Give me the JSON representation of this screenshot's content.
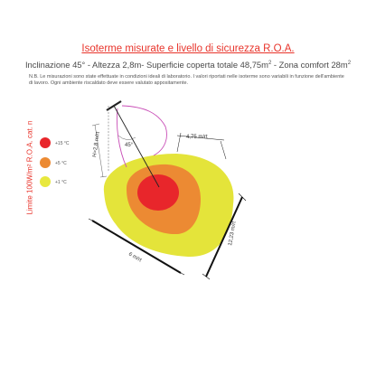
{
  "title": "Isoterme misurate e livello di sicurezza R.O.A.",
  "subtitle": {
    "part1": "Inclinazione 45° - Altezza 2,8m- Superficie coperta totale 48,75m",
    "sup1": "2",
    "part2": " - Zona comfort 28m",
    "sup2": "2"
  },
  "note": "N.B. Le misurazioni sono state effettuate in condizioni ideali di laboratorio. I valori riportati nelle isoterme sono variabili in funzione dell'ambiente di lavoro. Ogni ambiente riscaldato deve essere valutato appositamente.",
  "side_label": "Limite 100W/m² R.O.A. cat. n",
  "legend": [
    {
      "label": "+15 °C",
      "color": "#e8262b"
    },
    {
      "label": "+5 °C",
      "color": "#ec8a33"
    },
    {
      "label": "+1 °C",
      "color": "#e8e83e"
    }
  ],
  "dimensions": {
    "height": "H=2,8 m/rt",
    "angle": "45°",
    "top_width": "4,75 m/rt",
    "length": "6 m/rt",
    "depth": "12,23 m/rt"
  },
  "colors": {
    "hot": "#e8262b",
    "mid": "#ec8a33",
    "warm": "#e4e43a",
    "beam": "#c94fb7"
  }
}
